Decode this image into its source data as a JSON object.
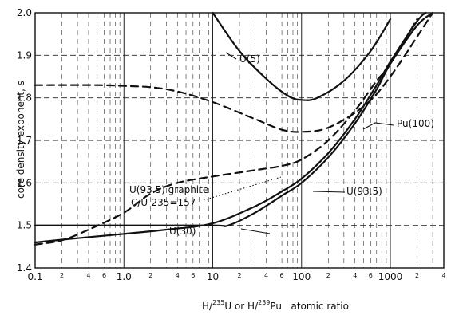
{
  "chart_data": {
    "type": "line",
    "xlabel_parts": [
      "H/",
      "235",
      "U or H/",
      "239",
      "Pu   atomic ratio"
    ],
    "ylabel": "core density exponent, s",
    "x_scale": "log",
    "xlim": [
      0.1,
      4000
    ],
    "ylim": [
      1.4,
      2.0
    ],
    "x_ticks": [
      {
        "value": 0.1,
        "label": "0.1"
      },
      {
        "value": 1,
        "label": "1.0"
      },
      {
        "value": 10,
        "label": "10"
      },
      {
        "value": 100,
        "label": "100"
      },
      {
        "value": 1000,
        "label": "1000"
      }
    ],
    "x_minor_ticks": [
      {
        "value": 0.2,
        "label": "2"
      },
      {
        "value": 0.4,
        "label": "4"
      },
      {
        "value": 0.6,
        "label": "6"
      },
      {
        "value": 2,
        "label": "2"
      },
      {
        "value": 4,
        "label": "4"
      },
      {
        "value": 6,
        "label": "6"
      },
      {
        "value": 20,
        "label": "2"
      },
      {
        "value": 40,
        "label": "4"
      },
      {
        "value": 60,
        "label": "6"
      },
      {
        "value": 200,
        "label": "2"
      },
      {
        "value": 400,
        "label": "4"
      },
      {
        "value": 600,
        "label": "6"
      },
      {
        "value": 2000,
        "label": "2"
      },
      {
        "value": 4000,
        "label": "4"
      }
    ],
    "y_ticks": [
      {
        "value": 1.4,
        "label": "1.4"
      },
      {
        "value": 1.5,
        "label": "1.5"
      },
      {
        "value": 1.6,
        "label": "1.6"
      },
      {
        "value": 1.7,
        "label": "1.7"
      },
      {
        "value": 1.8,
        "label": "1.8"
      },
      {
        "value": 1.9,
        "label": "1.9"
      },
      {
        "value": 2.0,
        "label": "2.0"
      }
    ],
    "grid": true,
    "series": [
      {
        "name": "U(5)",
        "style": "solid",
        "points": [
          [
            10,
            2.0
          ],
          [
            20,
            1.91
          ],
          [
            40,
            1.845
          ],
          [
            70,
            1.805
          ],
          [
            100,
            1.795
          ],
          [
            150,
            1.8
          ],
          [
            300,
            1.84
          ],
          [
            600,
            1.91
          ],
          [
            1000,
            1.985
          ]
        ]
      },
      {
        "name": "U(93.5) graphite",
        "style": "dashed",
        "points": [
          [
            0.1,
            1.83
          ],
          [
            0.5,
            1.83
          ],
          [
            1,
            1.828
          ],
          [
            2,
            1.825
          ],
          [
            4,
            1.815
          ],
          [
            10,
            1.79
          ],
          [
            30,
            1.75
          ],
          [
            60,
            1.725
          ],
          [
            100,
            1.72
          ],
          [
            200,
            1.73
          ],
          [
            500,
            1.78
          ],
          [
            1000,
            1.85
          ],
          [
            3000,
            2.0
          ]
        ]
      },
      {
        "name": "Pu(100)",
        "style": "solid",
        "points": [
          [
            0.1,
            1.46
          ],
          [
            0.3,
            1.47
          ],
          [
            1,
            1.48
          ],
          [
            3,
            1.49
          ],
          [
            10,
            1.505
          ],
          [
            30,
            1.545
          ],
          [
            60,
            1.58
          ],
          [
            100,
            1.61
          ],
          [
            200,
            1.67
          ],
          [
            400,
            1.75
          ],
          [
            700,
            1.83
          ],
          [
            1000,
            1.885
          ],
          [
            2000,
            1.98
          ],
          [
            2500,
            2.0
          ]
        ]
      },
      {
        "name": "U(30)",
        "style": "dashed",
        "points": [
          [
            0.1,
            1.455
          ],
          [
            0.2,
            1.465
          ],
          [
            0.4,
            1.49
          ],
          [
            1,
            1.53
          ],
          [
            2,
            1.575
          ],
          [
            4,
            1.6
          ],
          [
            10,
            1.615
          ],
          [
            30,
            1.63
          ],
          [
            60,
            1.64
          ],
          [
            100,
            1.655
          ],
          [
            200,
            1.7
          ],
          [
            400,
            1.77
          ],
          [
            700,
            1.84
          ],
          [
            1000,
            1.88
          ],
          [
            2000,
            1.985
          ]
        ]
      },
      {
        "name": "U(93.5)",
        "style": "solid",
        "points": [
          [
            0.1,
            1.5
          ],
          [
            1,
            1.5
          ],
          [
            10,
            1.5
          ],
          [
            15,
            1.5
          ],
          [
            30,
            1.53
          ],
          [
            60,
            1.57
          ],
          [
            100,
            1.6
          ],
          [
            200,
            1.66
          ],
          [
            400,
            1.74
          ],
          [
            700,
            1.82
          ],
          [
            1000,
            1.88
          ],
          [
            2000,
            1.97
          ],
          [
            3000,
            2.0
          ]
        ]
      }
    ],
    "annotations": [
      {
        "text": "U(5)"
      },
      {
        "text": "U(93.5) graphite"
      },
      {
        "text": "C/U-235=157"
      },
      {
        "text": "Pu(100)"
      },
      {
        "text": "U(30)"
      },
      {
        "text": "U(93.5)"
      }
    ]
  }
}
